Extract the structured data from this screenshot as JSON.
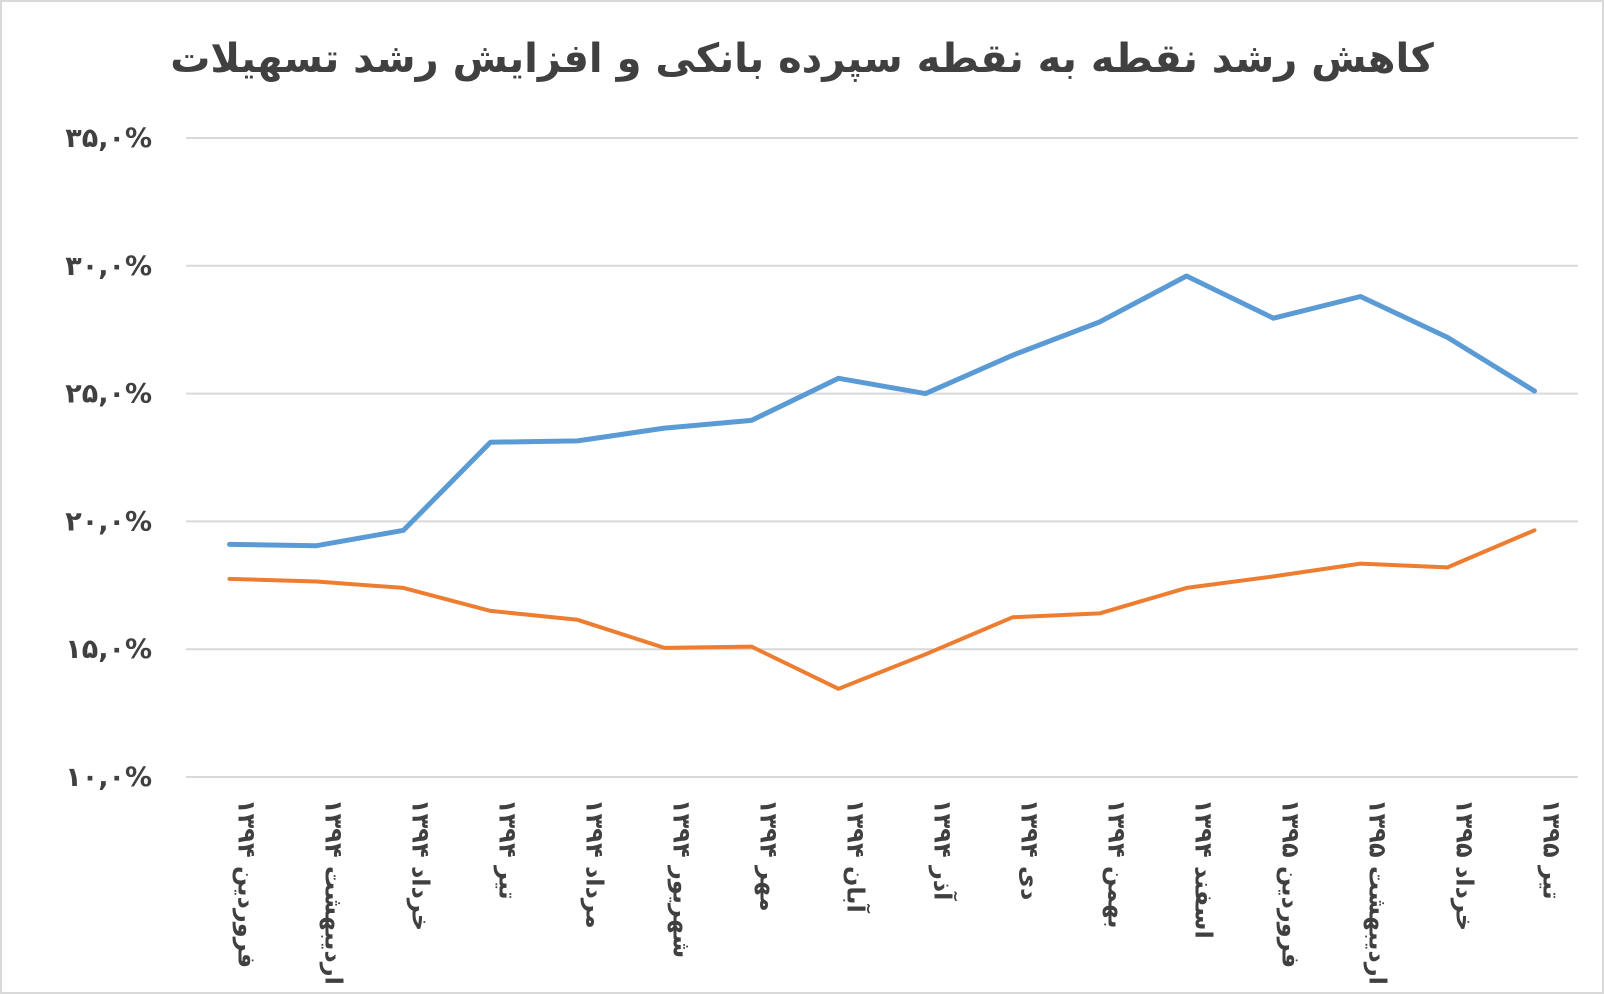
{
  "chart_data": {
    "type": "line",
    "title": "کاهش رشد نقطه به نقطه سپرده بانکی و افزایش رشد تسهیلات",
    "xlabel": "",
    "ylabel": "",
    "ylim": [
      10,
      35
    ],
    "yticks": [
      10,
      15,
      20,
      25,
      30,
      35
    ],
    "ytick_labels": [
      "۱۰,۰%",
      "۱۵,۰%",
      "۲۰,۰%",
      "۲۵,۰%",
      "۳۰,۰%",
      "۳۵,۰%"
    ],
    "grid": true,
    "categories": [
      "فروردین ۱۳۹۴",
      "اردیبهشت ۱۳۹۴",
      "خرداد ۱۳۹۴",
      "تیر ۱۳۹۴",
      "مرداد ۱۳۹۴",
      "شهریور ۱۳۹۴",
      "مهر ۱۳۹۴",
      "آبان ۱۳۹۴",
      "آذر ۱۳۹۴",
      "دی ۱۳۹۴",
      "بهمن ۱۳۹۴",
      "اسفند ۱۳۹۴",
      "فروردین ۱۳۹۵",
      "اردیبهشت ۱۳۹۵",
      "خرداد ۱۳۹۵",
      "تیر ۱۳۹۵"
    ],
    "series": [
      {
        "name": "blue",
        "color": "#5b9bd5",
        "values": [
          19.1,
          19.05,
          19.65,
          23.1,
          23.15,
          23.65,
          23.95,
          25.6,
          25.0,
          26.5,
          27.8,
          29.6,
          27.95,
          28.8,
          27.2,
          25.1
        ]
      },
      {
        "name": "orange",
        "color": "#ed7d31",
        "values": [
          17.75,
          17.65,
          17.4,
          16.5,
          16.15,
          15.05,
          15.1,
          13.45,
          14.8,
          16.25,
          16.4,
          17.4,
          17.85,
          18.35,
          18.2,
          19.65
        ]
      }
    ]
  }
}
